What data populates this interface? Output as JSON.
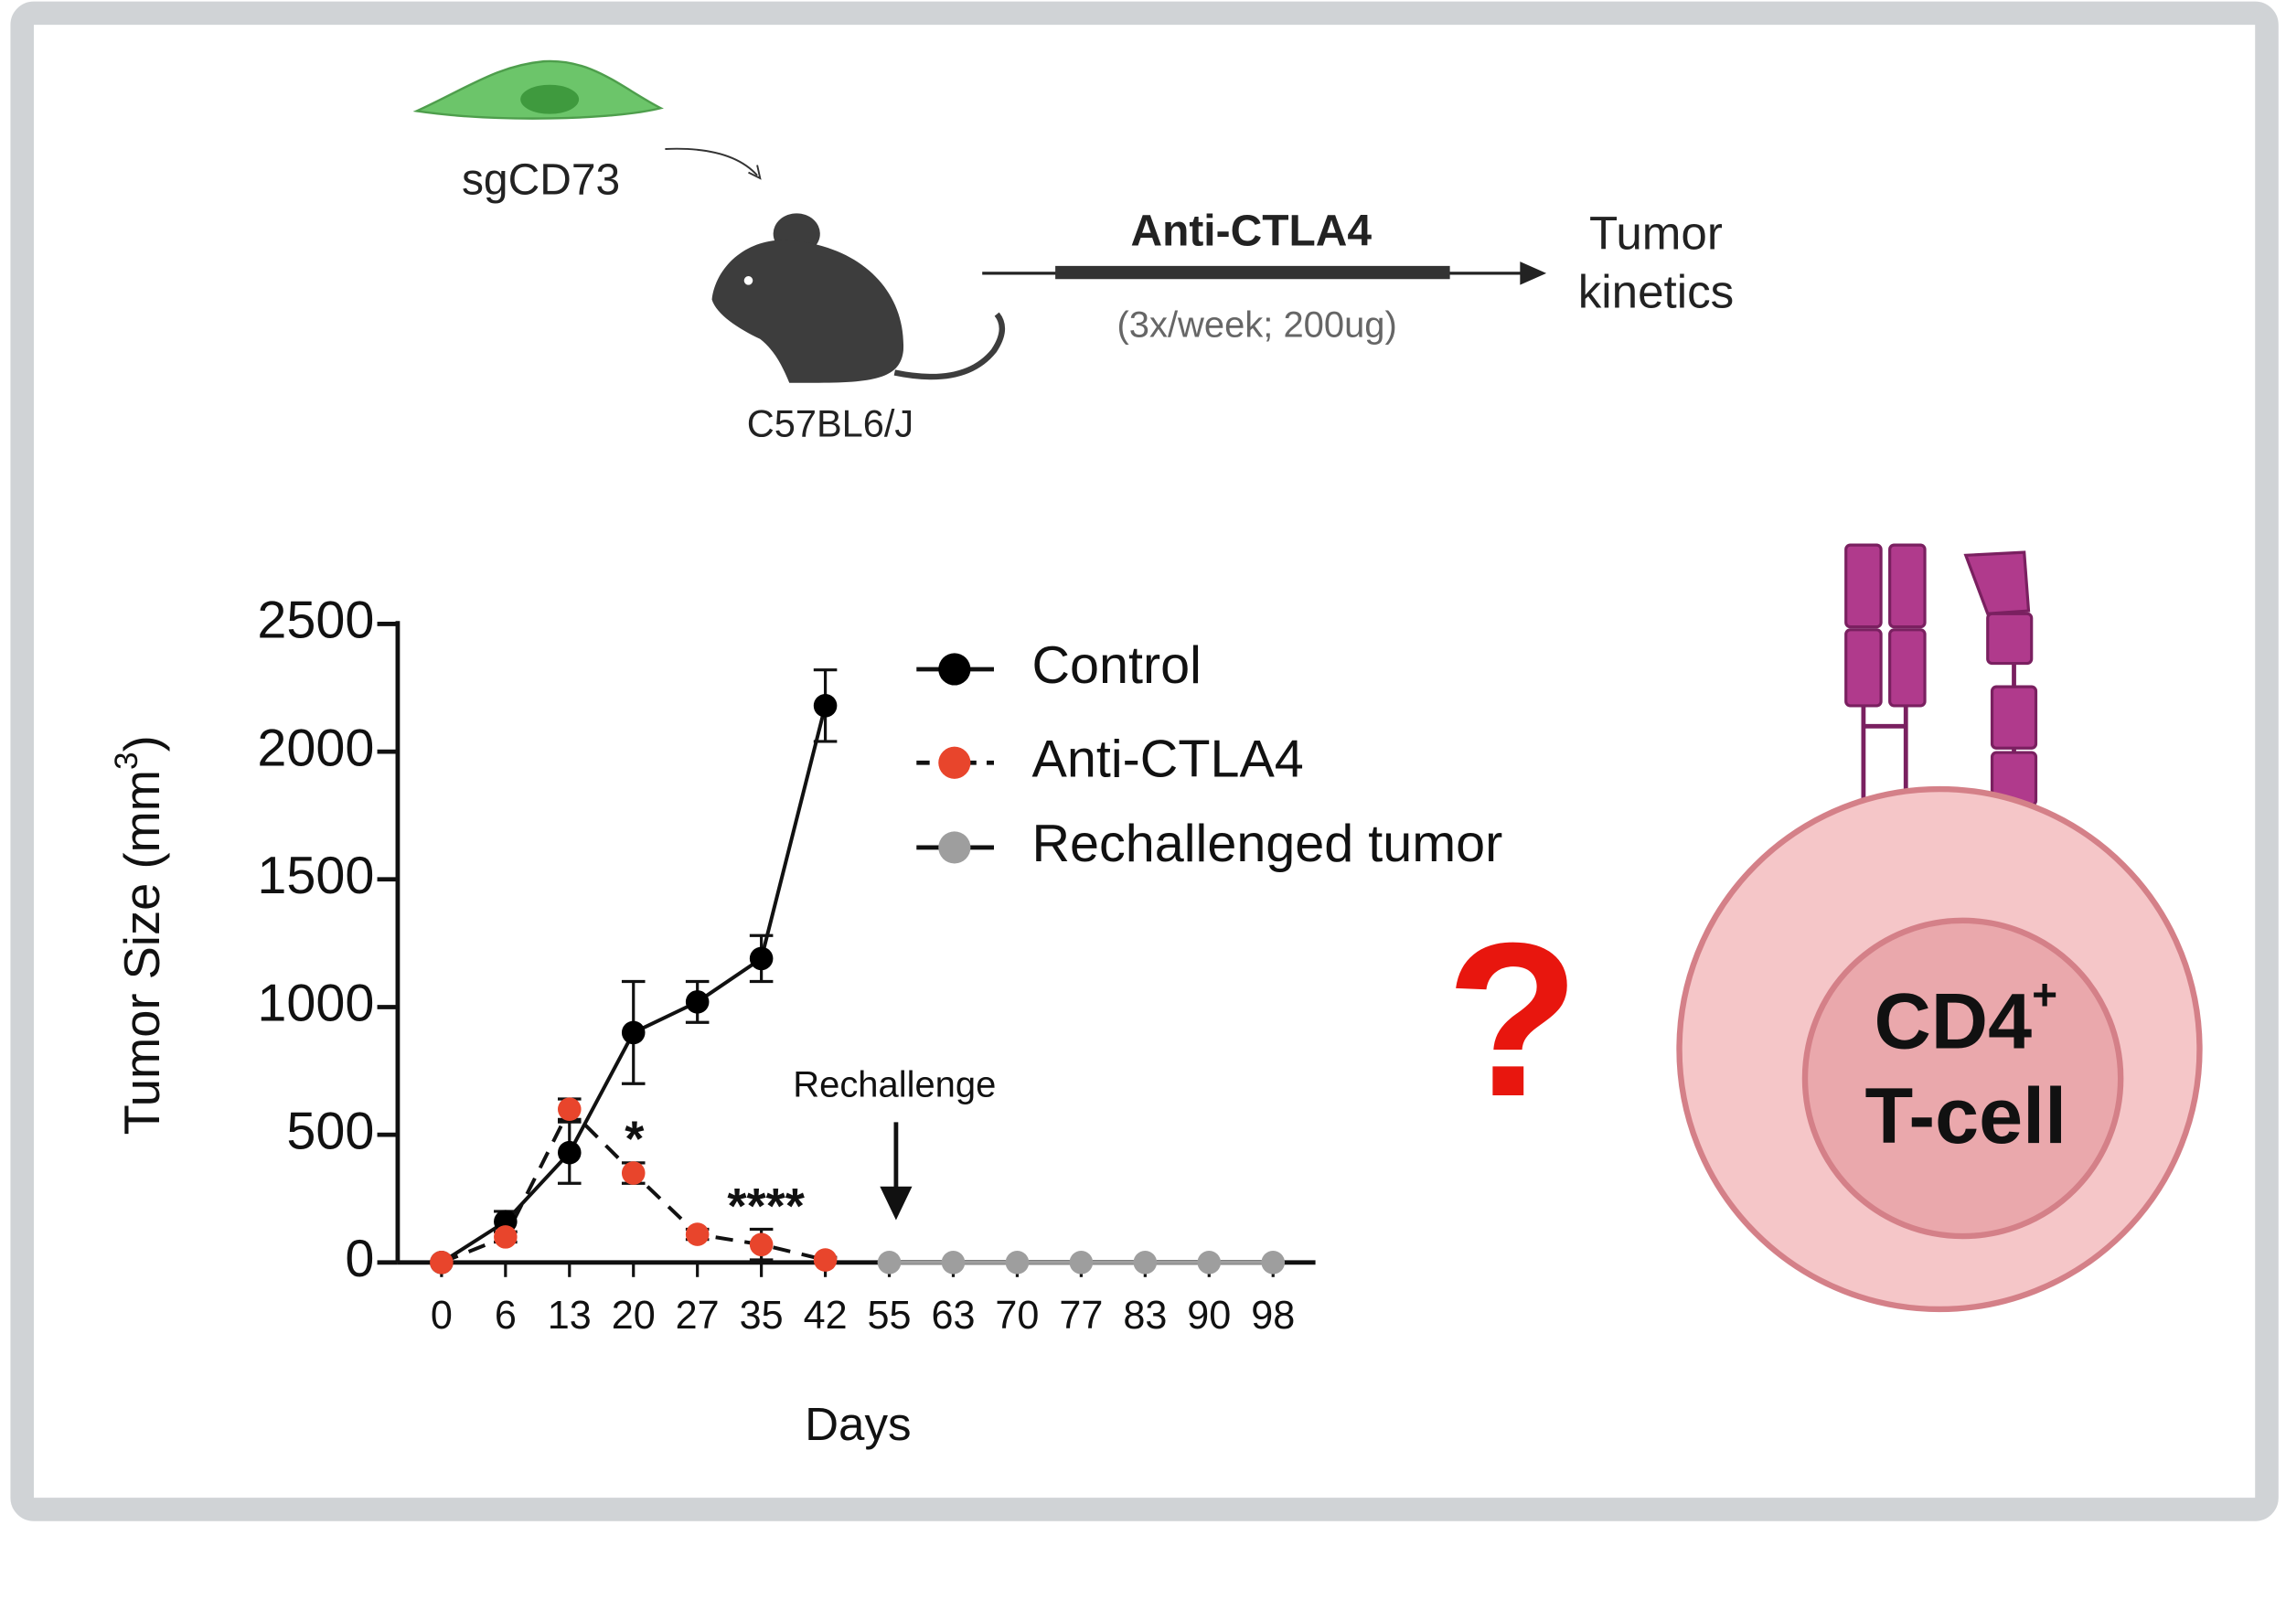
{
  "diagram": {
    "cell_label": "sgCD73",
    "mouse_label": "C57BL6/J",
    "treatment": "Anti-CTLA4",
    "dose": "(3x/week; 200ug)",
    "outcome": [
      "Tumor",
      "kinetics"
    ],
    "question": "?",
    "tcell": {
      "name": "CD4",
      "sup": "+",
      "line2": "T-cell"
    }
  },
  "chart_data": {
    "type": "line",
    "y_label": {
      "text": "Tumor Size (mm",
      "sup": "3",
      "end": ")"
    },
    "x_label": "Days",
    "categories": [
      "0",
      "6",
      "13",
      "20",
      "27",
      "35",
      "42",
      "55",
      "63",
      "70",
      "77",
      "83",
      "90",
      "98"
    ],
    "ylim": [
      0,
      2500
    ],
    "yticks": [
      0,
      500,
      1000,
      1500,
      2000,
      2500
    ],
    "series": [
      {
        "name": "Control",
        "color": "#000000",
        "dashed": false,
        "values": [
          0,
          160,
          430,
          900,
          1020,
          1190,
          2180,
          null,
          null,
          null,
          null,
          null,
          null,
          null
        ],
        "errors": [
          0,
          40,
          120,
          200,
          80,
          90,
          140,
          null,
          null,
          null,
          null,
          null,
          null,
          null
        ]
      },
      {
        "name": "Anti-CTLA4",
        "color": "#e8452c",
        "dashed": true,
        "values": [
          0,
          100,
          600,
          350,
          110,
          70,
          10,
          null,
          null,
          null,
          null,
          null,
          null,
          null
        ],
        "errors": [
          0,
          20,
          40,
          40,
          20,
          60,
          10,
          null,
          null,
          null,
          null,
          null,
          null,
          null
        ]
      },
      {
        "name": "Rechallenged tumor",
        "color": "#9e9e9e",
        "dashed": false,
        "values": [
          null,
          null,
          null,
          null,
          null,
          null,
          null,
          0,
          0,
          0,
          0,
          0,
          0,
          0
        ],
        "errors": [
          null,
          null,
          null,
          null,
          null,
          null,
          null,
          0,
          0,
          0,
          0,
          0,
          0,
          0
        ]
      }
    ],
    "annotations": [
      "*",
      "****",
      "Rechallenge"
    ]
  }
}
